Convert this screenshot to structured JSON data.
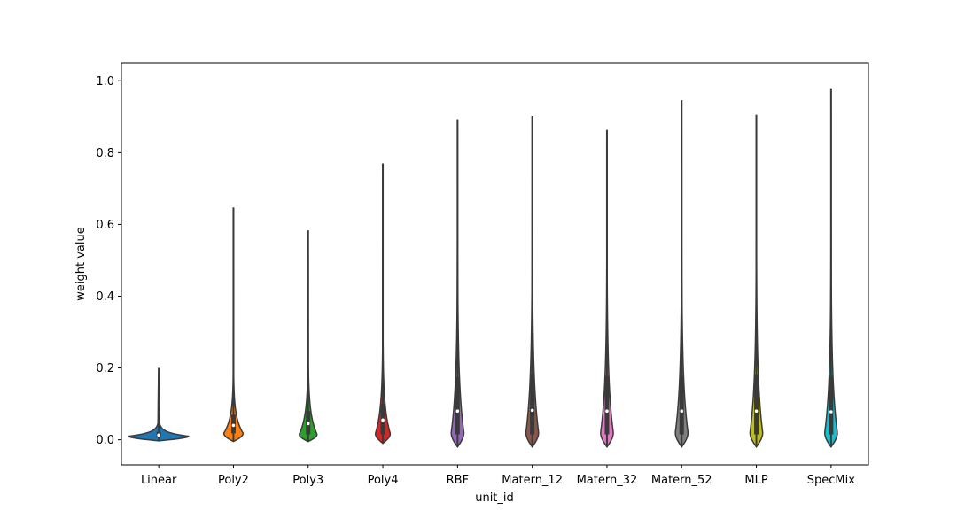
{
  "chart_data": {
    "type": "violin",
    "title": "",
    "xlabel": "unit_id",
    "ylabel": "weight value",
    "ylim": [
      -0.07,
      1.05
    ],
    "yticks": [
      0.0,
      0.2,
      0.4,
      0.6,
      0.8,
      1.0
    ],
    "ytick_labels": [
      "0.0",
      "0.2",
      "0.4",
      "0.6",
      "0.8",
      "1.0"
    ],
    "grid": false,
    "categories": [
      "Linear",
      "Poly2",
      "Poly3",
      "Poly4",
      "RBF",
      "Matern_12",
      "Matern_32",
      "Matern_52",
      "MLP",
      "SpecMix"
    ],
    "colors": [
      "#1f77b4",
      "#ff7f0e",
      "#2ca02c",
      "#d62728",
      "#9467bd",
      "#8c564b",
      "#e377c2",
      "#7f7f7f",
      "#bcbd22",
      "#17becf"
    ],
    "violins": [
      {
        "name": "Linear",
        "min": -0.003,
        "max": 0.2,
        "q1": 0.008,
        "median": 0.013,
        "q3": 0.022,
        "mode": 0.01,
        "peak_halfwidth": 0.45
      },
      {
        "name": "Poly2",
        "min": -0.005,
        "max": 0.647,
        "q1": 0.018,
        "median": 0.04,
        "q3": 0.07,
        "mode": 0.018,
        "peak_halfwidth": 0.13
      },
      {
        "name": "Poly3",
        "min": -0.005,
        "max": 0.583,
        "q1": 0.015,
        "median": 0.045,
        "q3": 0.08,
        "mode": 0.015,
        "peak_halfwidth": 0.12
      },
      {
        "name": "Poly4",
        "min": -0.01,
        "max": 0.77,
        "q1": 0.015,
        "median": 0.055,
        "q3": 0.1,
        "mode": 0.017,
        "peak_halfwidth": 0.1
      },
      {
        "name": "RBF",
        "min": -0.02,
        "max": 0.893,
        "q1": 0.015,
        "median": 0.08,
        "q3": 0.175,
        "mode": 0.02,
        "peak_halfwidth": 0.085
      },
      {
        "name": "Matern_12",
        "min": -0.02,
        "max": 0.902,
        "q1": 0.015,
        "median": 0.082,
        "q3": 0.183,
        "mode": 0.02,
        "peak_halfwidth": 0.085
      },
      {
        "name": "Matern_32",
        "min": -0.02,
        "max": 0.863,
        "q1": 0.015,
        "median": 0.08,
        "q3": 0.178,
        "mode": 0.02,
        "peak_halfwidth": 0.085
      },
      {
        "name": "Matern_52",
        "min": -0.02,
        "max": 0.946,
        "q1": 0.015,
        "median": 0.08,
        "q3": 0.178,
        "mode": 0.02,
        "peak_halfwidth": 0.085
      },
      {
        "name": "MLP",
        "min": -0.02,
        "max": 0.905,
        "q1": 0.015,
        "median": 0.08,
        "q3": 0.183,
        "mode": 0.02,
        "peak_halfwidth": 0.085
      },
      {
        "name": "SpecMix",
        "min": -0.02,
        "max": 0.979,
        "q1": 0.015,
        "median": 0.078,
        "q3": 0.178,
        "mode": 0.02,
        "peak_halfwidth": 0.085
      }
    ]
  }
}
